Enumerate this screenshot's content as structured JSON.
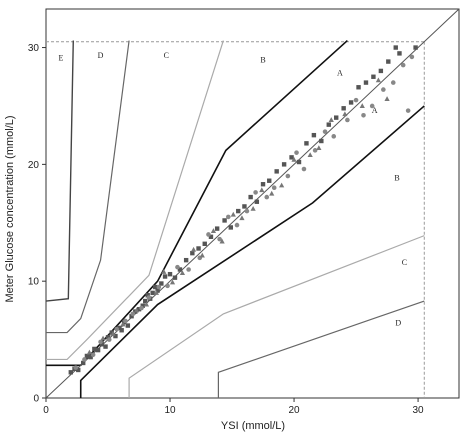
{
  "chart_data": {
    "type": "scatter",
    "title": "",
    "xlabel": "YSI (mmol/L)",
    "ylabel": "Meter Glucose concentration (mmol/L)",
    "xlim": [
      0,
      33.3
    ],
    "ylim": [
      0,
      33.3
    ],
    "x_ticks": [
      0,
      10,
      20,
      30
    ],
    "y_ticks": [
      0,
      10,
      20,
      30
    ],
    "grid": false,
    "legend": "none",
    "colors": {
      "boundary_ab": "#111111",
      "boundary_bc": "#aaaaaa",
      "boundary_cd": "#666666",
      "boundary_de": "#444444",
      "identity": "#555555",
      "reference": "#999999",
      "points_square": "#555555",
      "points_circle": "#888888",
      "points_triangle": "#777777"
    },
    "reference_limit": 30.5,
    "identity_line": [
      [
        0,
        0
      ],
      [
        33.3,
        33.3
      ]
    ],
    "zone_lines": [
      {
        "name": "A-B lower-left",
        "style": "ab",
        "points": [
          [
            0,
            2.8
          ],
          [
            2.8,
            2.8
          ],
          [
            9,
            10
          ],
          [
            14.5,
            21.2
          ],
          [
            24.3,
            30.6
          ]
        ]
      },
      {
        "name": "A-B lower-right",
        "style": "ab",
        "points": [
          [
            2.8,
            0
          ],
          [
            2.8,
            1.5
          ],
          [
            9,
            8
          ],
          [
            21.5,
            16.7
          ],
          [
            30.5,
            25
          ]
        ]
      },
      {
        "name": "B-C upper",
        "style": "bc",
        "points": [
          [
            0,
            3.3
          ],
          [
            1.7,
            3.3
          ],
          [
            3.3,
            5
          ],
          [
            8.3,
            10.5
          ],
          [
            14.3,
            30.6
          ]
        ]
      },
      {
        "name": "B-C lower",
        "style": "bc",
        "points": [
          [
            6.7,
            0
          ],
          [
            6.7,
            1.7
          ],
          [
            14.3,
            7.2
          ],
          [
            30.5,
            13.9
          ]
        ]
      },
      {
        "name": "C-D upper",
        "style": "cd",
        "points": [
          [
            0,
            5.6
          ],
          [
            1.7,
            5.6
          ],
          [
            2.8,
            6.8
          ],
          [
            4.4,
            11.8
          ],
          [
            6.7,
            30.6
          ]
        ]
      },
      {
        "name": "C-D lower",
        "style": "cd",
        "points": [
          [
            13.9,
            0
          ],
          [
            13.9,
            2.2
          ],
          [
            30.5,
            8.3
          ]
        ]
      },
      {
        "name": "D-E",
        "style": "de",
        "points": [
          [
            0,
            8.3
          ],
          [
            1.8,
            8.5
          ],
          [
            2.2,
            30.6
          ]
        ]
      }
    ],
    "zone_labels": [
      {
        "text": "E",
        "x": 1.2,
        "y": 28.9
      },
      {
        "text": "D",
        "x": 4.4,
        "y": 29.1
      },
      {
        "text": "C",
        "x": 9.7,
        "y": 29.1
      },
      {
        "text": "B",
        "x": 17.5,
        "y": 28.7
      },
      {
        "text": "A",
        "x": 23.7,
        "y": 27.6
      },
      {
        "text": "A",
        "x": 26.5,
        "y": 24.4
      },
      {
        "text": "B",
        "x": 28.3,
        "y": 18.6
      },
      {
        "text": "C",
        "x": 28.9,
        "y": 11.4
      },
      {
        "text": "D",
        "x": 28.4,
        "y": 6.2
      }
    ],
    "series": [
      {
        "marker": "square",
        "points": [
          [
            2,
            2.2
          ],
          [
            2.3,
            2.5
          ],
          [
            2.6,
            2.4
          ],
          [
            3,
            3
          ],
          [
            3.3,
            3.6
          ],
          [
            3.6,
            3.5
          ],
          [
            3.9,
            4.2
          ],
          [
            4.2,
            4.1
          ],
          [
            4.5,
            4.6
          ],
          [
            4.8,
            4.4
          ],
          [
            5,
            5.2
          ],
          [
            5.3,
            5.6
          ],
          [
            5.6,
            5.3
          ],
          [
            5.9,
            6
          ],
          [
            6.1,
            5.8
          ],
          [
            6.3,
            6.5
          ],
          [
            6.6,
            6.2
          ],
          [
            6.9,
            7
          ],
          [
            7.2,
            7.4
          ],
          [
            7.5,
            7.6
          ],
          [
            7.8,
            7.9
          ],
          [
            8,
            8.3
          ],
          [
            8.2,
            8.8
          ],
          [
            8.4,
            8.5
          ],
          [
            8.6,
            9
          ],
          [
            8.8,
            9.5
          ],
          [
            9,
            9.2
          ],
          [
            9.3,
            9.8
          ],
          [
            9.6,
            10.4
          ],
          [
            10,
            10.6
          ],
          [
            10.4,
            10.3
          ],
          [
            10.8,
            11
          ],
          [
            11.3,
            11.8
          ],
          [
            11.8,
            12.4
          ],
          [
            12.3,
            12.8
          ],
          [
            12.8,
            13.2
          ],
          [
            13.3,
            13.8
          ],
          [
            13.8,
            14.5
          ],
          [
            14.4,
            15.2
          ],
          [
            14.9,
            14.6
          ],
          [
            15.5,
            16
          ],
          [
            16,
            16.4
          ],
          [
            16.5,
            17.2
          ],
          [
            17,
            16.8
          ],
          [
            17.5,
            18.3
          ],
          [
            18,
            18.6
          ],
          [
            18.6,
            19.4
          ],
          [
            19.2,
            20
          ],
          [
            19.8,
            20.6
          ],
          [
            20.4,
            20.2
          ],
          [
            21,
            21.8
          ],
          [
            21.6,
            22.5
          ],
          [
            22.2,
            22
          ],
          [
            22.8,
            23.4
          ],
          [
            23.4,
            24
          ],
          [
            24,
            24.8
          ],
          [
            24.6,
            25.3
          ],
          [
            25.2,
            26.6
          ],
          [
            25.8,
            27
          ],
          [
            26.4,
            27.5
          ],
          [
            27,
            28
          ],
          [
            27.6,
            28.8
          ],
          [
            28.2,
            30
          ],
          [
            28.5,
            29.5
          ],
          [
            29.8,
            30
          ]
        ]
      },
      {
        "marker": "circle",
        "points": [
          [
            2.4,
            2.6
          ],
          [
            3.1,
            3.3
          ],
          [
            3.8,
            3.7
          ],
          [
            4.4,
            4.8
          ],
          [
            5.1,
            5
          ],
          [
            5.7,
            5.9
          ],
          [
            6.4,
            6.6
          ],
          [
            7,
            7.2
          ],
          [
            7.7,
            7.7
          ],
          [
            8.3,
            8.6
          ],
          [
            9.1,
            9.5
          ],
          [
            9.8,
            9.6
          ],
          [
            10.6,
            11.2
          ],
          [
            11.5,
            11
          ],
          [
            12.4,
            12
          ],
          [
            13.1,
            14
          ],
          [
            14,
            13.6
          ],
          [
            14.7,
            15.5
          ],
          [
            15.4,
            14.8
          ],
          [
            16.2,
            16
          ],
          [
            16.9,
            17.6
          ],
          [
            17.8,
            17.2
          ],
          [
            18.4,
            18
          ],
          [
            19.5,
            19
          ],
          [
            20.2,
            21
          ],
          [
            20.8,
            19.6
          ],
          [
            21.7,
            21.2
          ],
          [
            22.5,
            22.8
          ],
          [
            23.2,
            22.4
          ],
          [
            24.3,
            23.8
          ],
          [
            25,
            25.5
          ],
          [
            25.6,
            24.2
          ],
          [
            26.3,
            25
          ],
          [
            27.2,
            26.4
          ],
          [
            28,
            27
          ],
          [
            28.8,
            28.5
          ],
          [
            29.5,
            29.2
          ],
          [
            29.2,
            24.6
          ]
        ]
      },
      {
        "marker": "triangle",
        "points": [
          [
            3.5,
            3.9
          ],
          [
            4.6,
            5.1
          ],
          [
            5.4,
            5.5
          ],
          [
            6.2,
            6.3
          ],
          [
            7.3,
            7.5
          ],
          [
            8.1,
            8
          ],
          [
            8.9,
            9
          ],
          [
            9.5,
            10.8
          ],
          [
            10.2,
            9.9
          ],
          [
            11,
            10.7
          ],
          [
            11.9,
            12.7
          ],
          [
            12.6,
            12.2
          ],
          [
            13.5,
            14.3
          ],
          [
            14.2,
            13.4
          ],
          [
            15.1,
            15.7
          ],
          [
            15.8,
            15.4
          ],
          [
            16.7,
            16.2
          ],
          [
            17.4,
            17.8
          ],
          [
            18.2,
            17.5
          ],
          [
            19,
            18.2
          ],
          [
            20,
            20.4
          ],
          [
            21.3,
            20.8
          ],
          [
            22,
            21.4
          ],
          [
            23,
            23.8
          ],
          [
            24.1,
            24.3
          ],
          [
            25.5,
            25
          ],
          [
            26.8,
            27.2
          ],
          [
            27.5,
            25.6
          ]
        ]
      }
    ]
  }
}
